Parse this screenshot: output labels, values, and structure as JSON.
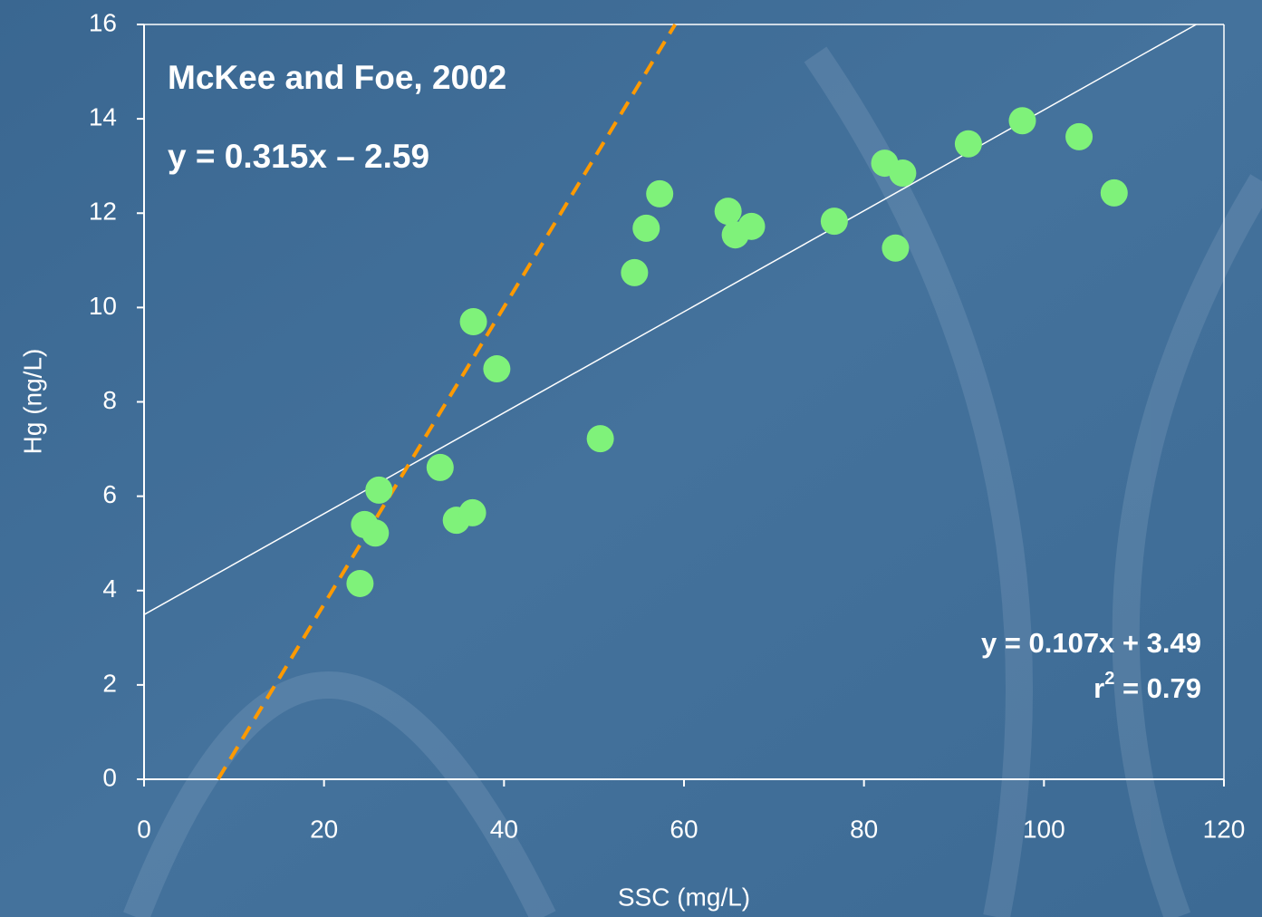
{
  "chart_data": {
    "type": "scatter",
    "x": [
      24,
      24.5,
      25.7,
      26.1,
      32.9,
      34.7,
      36.5,
      36.6,
      39.2,
      50.7,
      54.5,
      55.8,
      57.3,
      64.9,
      65.7,
      67.5,
      76.7,
      82.3,
      84.3,
      83.5,
      91.6,
      97.6,
      103.9,
      107.8
    ],
    "values": [
      4.15,
      5.4,
      5.22,
      6.13,
      6.61,
      5.49,
      5.65,
      9.7,
      8.7,
      7.22,
      10.74,
      11.68,
      12.41,
      12.04,
      11.54,
      11.72,
      11.83,
      13.06,
      12.85,
      11.26,
      13.47,
      13.96,
      13.62,
      12.43
    ],
    "color": "#7ff27a",
    "xlabel": "SSC (mg/L)",
    "ylabel": "Hg (ng/L)",
    "xlim": [
      0,
      120
    ],
    "xticks": [
      0,
      20,
      40,
      60,
      80,
      100,
      120
    ],
    "ylim": [
      0,
      16
    ],
    "yticks": [
      0,
      2,
      4,
      6,
      8,
      10,
      12,
      14,
      16
    ],
    "fits": [
      {
        "label": "y = 0.107x + 3.49",
        "slope": 0.107,
        "intercept": 3.49,
        "color": "#ffffff",
        "dashed": false
      },
      {
        "label": "y = 0.315x – 2.59",
        "slope": 0.315,
        "intercept": -2.59,
        "color": "#ff9a00",
        "dashed": true
      }
    ],
    "title": "McKee and Foe, 2002",
    "r_squared": {
      "base": "r",
      "sup": "2",
      "rest": " = 0.79"
    }
  }
}
